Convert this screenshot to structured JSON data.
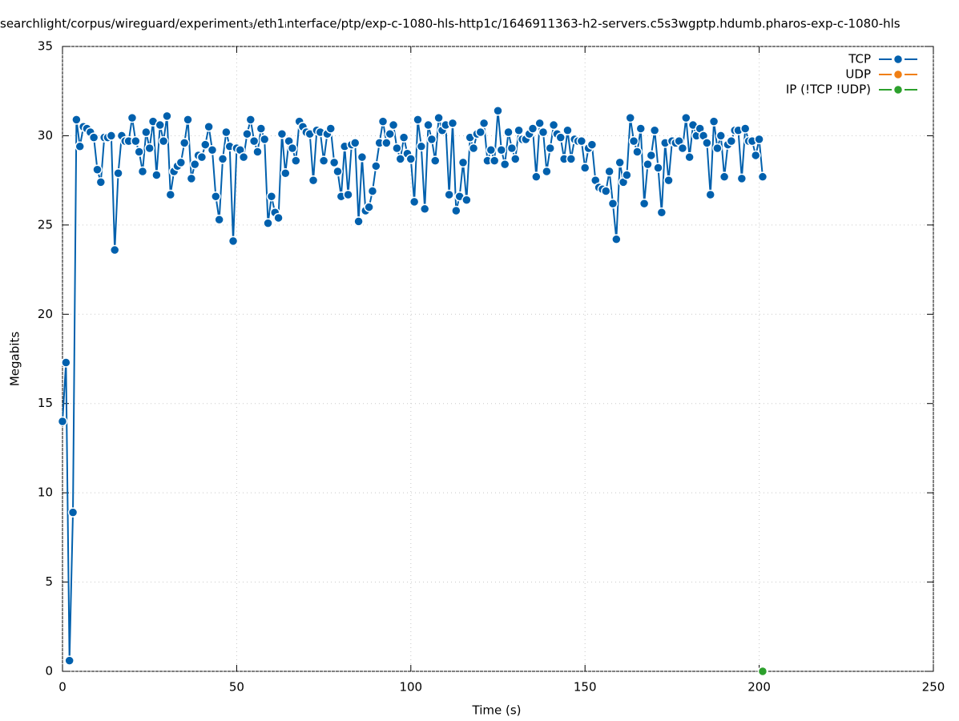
{
  "chart_data": {
    "type": "line",
    "title": "searchlight/corpus/wireguard/experiment₃/eth1ᵢnterface/ptp/exp-c-1080-hls-http1c/1646911363-h2-servers.c5s3wgptp.hdumb.pharos-exp-c-1080-hls",
    "x_label": "Time (s)",
    "y_label": "Megabits",
    "xlim": [
      0,
      250
    ],
    "xticks": [
      0,
      50,
      100,
      150,
      200,
      250
    ],
    "ylim": [
      0,
      35
    ],
    "yticks": [
      0,
      5,
      10,
      15,
      20,
      25,
      30,
      35
    ],
    "grid": true,
    "legend": "top-right",
    "series": [
      {
        "name": "TCP",
        "color": "#0060ad",
        "x": [
          0,
          1,
          2,
          3,
          4,
          5,
          6,
          7,
          8,
          9,
          10,
          11,
          12,
          13,
          14,
          15,
          16,
          17,
          18,
          19,
          20,
          21,
          22,
          23,
          24,
          25,
          26,
          27,
          28,
          29,
          30,
          31,
          32,
          33,
          34,
          35,
          36,
          37,
          38,
          39,
          40,
          41,
          42,
          43,
          44,
          45,
          46,
          47,
          48,
          49,
          50,
          51,
          52,
          53,
          54,
          55,
          56,
          57,
          58,
          59,
          60,
          61,
          62,
          63,
          64,
          65,
          66,
          67,
          68,
          69,
          70,
          71,
          72,
          73,
          74,
          75,
          76,
          77,
          78,
          79,
          80,
          81,
          82,
          83,
          84,
          85,
          86,
          87,
          88,
          89,
          90,
          91,
          92,
          93,
          94,
          95,
          96,
          97,
          98,
          99,
          100,
          101,
          102,
          103,
          104,
          105,
          106,
          107,
          108,
          109,
          110,
          111,
          112,
          113,
          114,
          115,
          116,
          117,
          118,
          119,
          120,
          121,
          122,
          123,
          124,
          125,
          126,
          127,
          128,
          129,
          130,
          131,
          132,
          133,
          134,
          135,
          136,
          137,
          138,
          139,
          140,
          141,
          142,
          143,
          144,
          145,
          146,
          147,
          148,
          149,
          150,
          151,
          152,
          153,
          154,
          155,
          156,
          157,
          158,
          159,
          160,
          161,
          162,
          163,
          164,
          165,
          166,
          167,
          168,
          169,
          170,
          171,
          172,
          173,
          174,
          175,
          176,
          177,
          178,
          179,
          180,
          181,
          182,
          183,
          184,
          185,
          186,
          187,
          188,
          189,
          190,
          191,
          192,
          193,
          194,
          195,
          196,
          197,
          198,
          199,
          200,
          201
        ],
        "values": [
          14.0,
          17.3,
          0.6,
          8.9,
          30.9,
          29.4,
          30.5,
          30.4,
          30.2,
          29.9,
          28.1,
          27.4,
          29.9,
          29.9,
          30.0,
          23.6,
          27.9,
          30.0,
          29.7,
          29.7,
          31.0,
          29.7,
          29.1,
          28.0,
          30.2,
          29.3,
          30.8,
          27.8,
          30.6,
          29.7,
          31.1,
          26.7,
          28.0,
          28.3,
          28.5,
          29.6,
          30.9,
          27.6,
          28.4,
          28.9,
          28.8,
          29.5,
          30.5,
          29.2,
          26.6,
          25.3,
          28.7,
          30.2,
          29.4,
          24.1,
          29.3,
          29.2,
          28.8,
          30.1,
          30.9,
          29.7,
          29.1,
          30.4,
          29.8,
          25.1,
          26.6,
          25.7,
          25.4,
          30.1,
          27.9,
          29.7,
          29.3,
          28.6,
          30.8,
          30.5,
          30.2,
          30.1,
          27.5,
          30.3,
          30.2,
          28.6,
          30.1,
          30.4,
          28.5,
          28.0,
          26.6,
          29.4,
          26.7,
          29.5,
          29.6,
          25.2,
          28.8,
          25.8,
          26.0,
          26.9,
          28.3,
          29.6,
          30.8,
          29.6,
          30.1,
          30.6,
          29.3,
          28.7,
          29.9,
          29.0,
          28.7,
          26.3,
          30.9,
          29.4,
          25.9,
          30.6,
          29.8,
          28.6,
          31.0,
          30.3,
          30.6,
          26.7,
          30.7,
          25.8,
          26.6,
          28.5,
          26.4,
          29.9,
          29.3,
          30.1,
          30.2,
          30.7,
          28.6,
          29.2,
          28.6,
          31.4,
          29.2,
          28.4,
          30.2,
          29.3,
          28.7,
          30.3,
          29.8,
          29.8,
          30.1,
          30.4,
          27.7,
          30.7,
          30.2,
          28.0,
          29.3,
          30.6,
          30.1,
          29.9,
          28.7,
          30.3,
          28.7,
          29.8,
          29.7,
          29.7,
          28.2,
          29.3,
          29.5,
          27.5,
          27.1,
          27.0,
          26.9,
          28.0,
          26.2,
          24.2,
          28.5,
          27.4,
          27.8,
          31.0,
          29.7,
          29.1,
          30.4,
          26.2,
          28.4,
          28.9,
          30.3,
          28.2,
          25.7,
          29.6,
          27.5,
          29.7,
          29.6,
          29.7,
          29.3,
          31.0,
          28.8,
          30.6,
          30.0,
          30.4,
          30.0,
          29.6,
          26.7,
          30.8,
          29.3,
          30.0,
          27.7,
          29.5,
          29.7,
          30.3,
          30.3,
          27.6,
          30.4,
          29.7,
          29.7,
          28.9,
          29.8,
          27.7
        ]
      },
      {
        "name": "UDP",
        "color": "#f07f14",
        "x": [
          201
        ],
        "values": [
          0
        ]
      },
      {
        "name": "IP (!TCP  !UDP)",
        "color": "#2ca02c",
        "x": [
          201
        ],
        "values": [
          0
        ]
      }
    ]
  }
}
